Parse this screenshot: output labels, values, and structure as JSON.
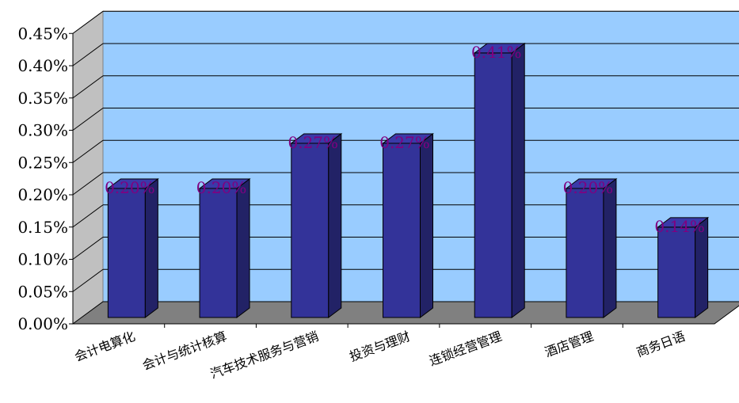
{
  "chart_data": {
    "type": "bar",
    "title": "",
    "xlabel": "",
    "ylabel": "",
    "categories": [
      "会计电算化",
      "会计与统计核算",
      "汽车技术服务与营销",
      "投资与理财",
      "连锁经营管理",
      "酒店管理",
      "商务日语"
    ],
    "series": [
      {
        "values": [
          0.2,
          0.2,
          0.27,
          0.27,
          0.41,
          0.2,
          0.14
        ]
      }
    ],
    "value_labels": [
      "0.20%",
      "0.20%",
      "0.27%",
      "0.27%",
      "0.41%",
      "0.20%",
      "0.14%"
    ],
    "y_ticks": [
      "0.00%",
      "0.05%",
      "0.10%",
      "0.15%",
      "0.20%",
      "0.25%",
      "0.30%",
      "0.35%",
      "0.40%",
      "0.45%"
    ],
    "ylim": [
      0,
      0.45
    ],
    "grid": true,
    "legend": "none",
    "colors": {
      "wall": "#99ccff",
      "floor": "#808080",
      "bar_front": "#333399",
      "bar_side": "#222266",
      "bar_top": "#3a3aa8",
      "value_label": "#800080"
    }
  }
}
